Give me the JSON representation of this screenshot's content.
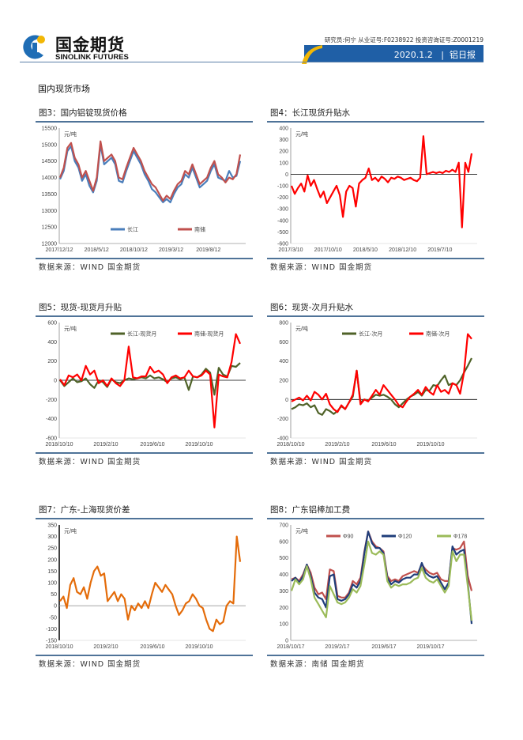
{
  "header": {
    "logo_cn": "国金期货",
    "logo_en": "SINOLINK FUTURES",
    "researcher": "研究员:何宁  从业证号:F0238922  投资咨询证号:Z0001219",
    "date": "2020.1.2",
    "separator": "|",
    "report": "铝日报",
    "brand_color": "#1f5fa6",
    "accent_color": "#f2b705"
  },
  "section_title": "国内现货市场",
  "chart_data": [
    {
      "id": "c3",
      "title": "图3：国内铝锭现货价格",
      "source": "数据来源：WIND 国金期货",
      "type": "line",
      "unit": "元/吨",
      "ylim": [
        12000,
        15500
      ],
      "yticks": [
        12000,
        12500,
        13000,
        13500,
        14000,
        14500,
        15000,
        15500
      ],
      "xticks": [
        "2017/12/12",
        "2018/5/12",
        "2018/10/12",
        "2019/3/12",
        "2019/8/12"
      ],
      "legend": "bottom",
      "series": [
        {
          "name": "长江",
          "color": "#4a7ebb",
          "values": [
            13950,
            14200,
            14800,
            14950,
            14500,
            14300,
            13900,
            14100,
            13750,
            13550,
            13900,
            15000,
            14400,
            14500,
            14600,
            14400,
            13900,
            13850,
            14200,
            14500,
            14800,
            14600,
            14400,
            14100,
            13900,
            13650,
            13550,
            13400,
            13250,
            13350,
            13250,
            13500,
            13700,
            13800,
            14100,
            14000,
            14300,
            14000,
            13700,
            13800,
            13900,
            14200,
            14400,
            14000,
            13950,
            13900,
            14200,
            14000,
            14050,
            14500
          ]
        },
        {
          "name": "南储",
          "color": "#c0504d",
          "values": [
            14000,
            14300,
            14900,
            15050,
            14600,
            14400,
            14000,
            14200,
            13900,
            13600,
            14000,
            15100,
            14500,
            14600,
            14700,
            14500,
            14000,
            13950,
            14300,
            14600,
            14900,
            14700,
            14500,
            14200,
            14000,
            13800,
            13700,
            13500,
            13300,
            13450,
            13350,
            13600,
            13800,
            13900,
            14200,
            14100,
            14400,
            14100,
            13800,
            13900,
            14000,
            14300,
            14500,
            14100,
            14000,
            13850,
            14000,
            13950,
            14100,
            14700
          ]
        }
      ]
    },
    {
      "id": "c4",
      "title": "图4：长江现货升贴水",
      "source": "数据来源：WIND 国金期货",
      "type": "line",
      "unit": "元/吨",
      "ylim": [
        -600,
        400
      ],
      "yticks": [
        -600,
        -500,
        -400,
        -300,
        -200,
        -100,
        0,
        100,
        200,
        300,
        400
      ],
      "xticks": [
        "2017/3/10",
        "2017/10/10",
        "2018/5/10",
        "2018/12/10",
        "2019/7/10"
      ],
      "legend": "none",
      "series": [
        {
          "color": "#ff0000",
          "values": [
            -100,
            -170,
            -120,
            -80,
            -150,
            -10,
            -100,
            -50,
            -130,
            -200,
            -150,
            -250,
            -200,
            -150,
            -100,
            -180,
            -370,
            -150,
            -100,
            -120,
            -280,
            -80,
            -50,
            -30,
            50,
            -50,
            -30,
            -60,
            -20,
            -40,
            -70,
            -30,
            -40,
            -20,
            -30,
            -50,
            -40,
            -30,
            -50,
            -60,
            -30,
            330,
            0,
            10,
            20,
            10,
            20,
            10,
            30,
            20,
            40,
            20,
            100,
            -460,
            100,
            20,
            180
          ]
        }
      ]
    },
    {
      "id": "c5",
      "title": "图5：现货-现货月升贴",
      "source": "数据来源：WIND 国金期货",
      "type": "line",
      "unit": "元/吨",
      "ylim": [
        -600,
        600
      ],
      "yticks": [
        -600,
        -400,
        -200,
        0,
        200,
        400,
        600
      ],
      "xticks": [
        "2018/10/10",
        "2019/2/10",
        "2019/6/10",
        "2019/10/10"
      ],
      "legend": "top",
      "series": [
        {
          "name": "长江-现货月",
          "color": "#4f6228",
          "values": [
            0,
            -60,
            -20,
            20,
            -20,
            -10,
            20,
            -40,
            -80,
            0,
            -20,
            -70,
            10,
            -20,
            -30,
            0,
            20,
            10,
            20,
            30,
            20,
            50,
            20,
            30,
            10,
            -20,
            20,
            30,
            10,
            30,
            -100,
            40,
            30,
            60,
            120,
            80,
            -150,
            130,
            60,
            40,
            150,
            140,
            180
          ]
        },
        {
          "name": "南储-现货月",
          "color": "#ff0000",
          "values": [
            10,
            -50,
            50,
            30,
            60,
            0,
            150,
            60,
            100,
            -30,
            0,
            -60,
            20,
            -30,
            -60,
            0,
            350,
            30,
            20,
            40,
            40,
            140,
            80,
            100,
            60,
            -30,
            30,
            50,
            20,
            30,
            100,
            40,
            30,
            50,
            100,
            60,
            -490,
            60,
            40,
            30,
            190,
            480,
            380
          ]
        }
      ]
    },
    {
      "id": "c6",
      "title": "图6：现货-次月升贴水",
      "source": "数据来源：WIND 国金期货",
      "type": "line",
      "unit": "元/吨",
      "ylim": [
        -400,
        800
      ],
      "yticks": [
        -400,
        -200,
        0,
        200,
        400,
        600,
        800
      ],
      "xticks": [
        "2018/10/10",
        "2019/2/10",
        "2019/6/10",
        "2019/10/10"
      ],
      "legend": "top",
      "series": [
        {
          "name": "长江-次月",
          "color": "#4f6228",
          "values": [
            -100,
            -80,
            -50,
            -60,
            -40,
            -80,
            -60,
            -140,
            -160,
            -100,
            -120,
            -150,
            -120,
            -70,
            -100,
            -30,
            30,
            300,
            -30,
            0,
            -10,
            20,
            50,
            40,
            50,
            30,
            0,
            -50,
            -80,
            -40,
            0,
            30,
            50,
            80,
            40,
            100,
            90,
            150,
            140,
            200,
            250,
            150,
            170,
            150,
            200,
            280,
            350,
            430
          ]
        },
        {
          "name": "南储-次月",
          "color": "#ff0000",
          "values": [
            -20,
            0,
            20,
            -10,
            40,
            -10,
            80,
            50,
            0,
            60,
            -50,
            -100,
            -130,
            -60,
            -100,
            -30,
            50,
            300,
            -50,
            0,
            -20,
            40,
            100,
            50,
            150,
            100,
            50,
            0,
            -60,
            -80,
            -20,
            30,
            60,
            100,
            50,
            130,
            80,
            50,
            150,
            80,
            100,
            60,
            170,
            150,
            60,
            280,
            680,
            630
          ]
        }
      ]
    },
    {
      "id": "c7",
      "title": "图7：广东-上海现货价差",
      "source": "数据来源：WIND 国金期货",
      "type": "line",
      "unit": "元/吨",
      "ylim": [
        -150,
        350
      ],
      "yticks": [
        -150,
        -100,
        -50,
        0,
        50,
        100,
        150,
        200,
        250,
        300,
        350
      ],
      "xticks": [
        "2018/10/10",
        "2019/2/10",
        "2019/6/10",
        "2019/10/10"
      ],
      "legend": "none",
      "series": [
        {
          "color": "#e46c0a",
          "values": [
            20,
            40,
            -10,
            90,
            120,
            60,
            50,
            80,
            30,
            100,
            150,
            170,
            130,
            140,
            20,
            40,
            60,
            20,
            50,
            30,
            -60,
            0,
            -20,
            10,
            -10,
            20,
            -10,
            50,
            100,
            80,
            60,
            90,
            70,
            50,
            0,
            -40,
            -20,
            10,
            20,
            50,
            30,
            0,
            -10,
            -60,
            -100,
            -110,
            -60,
            -80,
            -70,
            0,
            20,
            10,
            300,
            190
          ]
        }
      ]
    },
    {
      "id": "c8",
      "title": "图8：广东铝棒加工费",
      "source": "数据来源：南储 国金期货",
      "type": "line",
      "unit": "元/吨",
      "ylim": [
        0,
        700
      ],
      "yticks": [
        0,
        100,
        200,
        300,
        400,
        500,
        600,
        700
      ],
      "xticks": [
        "2018/10/17",
        "2019/2/17",
        "2019/6/17",
        "2019/10/17"
      ],
      "legend": "top",
      "series": [
        {
          "name": "Φ90",
          "color": "#c0504d",
          "values": [
            370,
            380,
            360,
            400,
            460,
            410,
            320,
            280,
            290,
            250,
            430,
            420,
            270,
            260,
            260,
            290,
            360,
            340,
            380,
            540,
            660,
            600,
            570,
            560,
            540,
            390,
            360,
            370,
            360,
            390,
            400,
            410,
            420,
            410,
            460,
            430,
            410,
            400,
            410,
            370,
            360,
            360,
            560,
            550,
            560,
            600,
            390,
            300
          ]
        },
        {
          "name": "Φ120",
          "color": "#1f3d7a",
          "values": [
            360,
            380,
            350,
            390,
            460,
            390,
            290,
            260,
            250,
            200,
            390,
            400,
            250,
            240,
            250,
            280,
            340,
            320,
            360,
            530,
            660,
            590,
            560,
            560,
            530,
            380,
            340,
            360,
            350,
            370,
            380,
            380,
            400,
            400,
            470,
            410,
            390,
            380,
            390,
            350,
            310,
            350,
            570,
            520,
            540,
            550,
            350,
            100
          ]
        },
        {
          "name": "Φ178",
          "color": "#9bbb59",
          "values": [
            300,
            370,
            340,
            370,
            450,
            370,
            260,
            220,
            180,
            140,
            330,
            280,
            230,
            220,
            230,
            260,
            310,
            290,
            330,
            460,
            600,
            530,
            520,
            540,
            520,
            360,
            320,
            340,
            330,
            340,
            340,
            350,
            370,
            380,
            440,
            380,
            360,
            350,
            370,
            330,
            290,
            330,
            540,
            480,
            520,
            520,
            330,
            120
          ]
        }
      ]
    }
  ]
}
